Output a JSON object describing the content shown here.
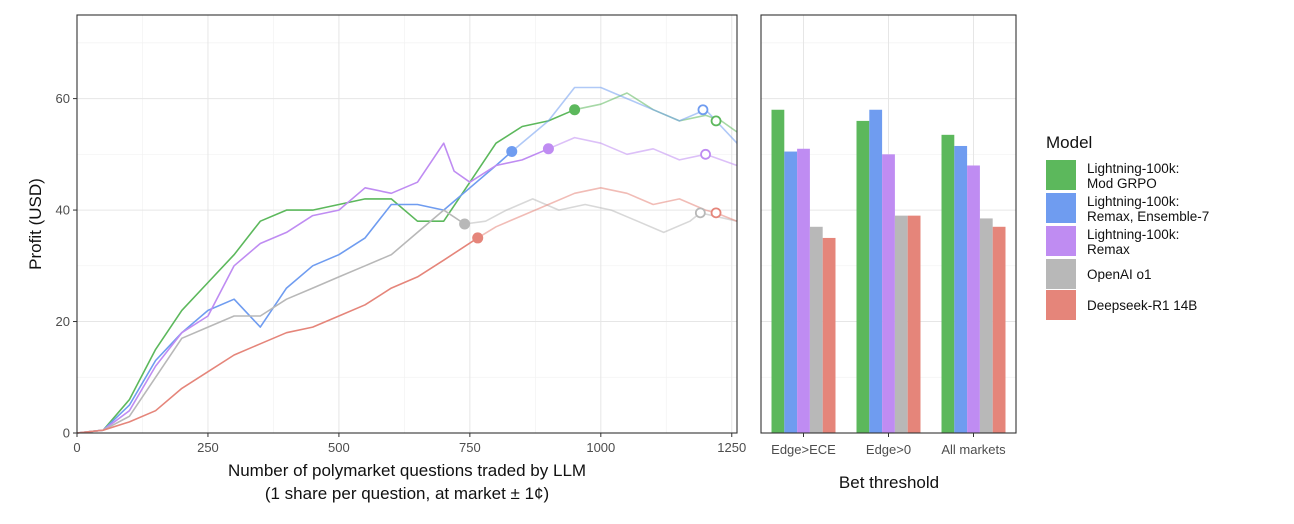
{
  "chart_data": [
    {
      "type": "line",
      "xlabel": "Number of polymarket questions traded by LLM",
      "xlabel2": "(1 share per question, at market ± 1¢)",
      "ylabel": "Profit (USD)",
      "xlim": [
        0,
        1260
      ],
      "ylim": [
        0,
        75
      ],
      "x_ticks": [
        0,
        250,
        500,
        750,
        1000,
        1250
      ],
      "y_ticks": [
        0,
        20,
        40,
        60
      ],
      "grid": true,
      "series": [
        {
          "name": "Lightning-100k:\nMod GRPO",
          "color": "#5cb85c",
          "x": [
            0,
            50,
            100,
            150,
            200,
            250,
            300,
            350,
            400,
            450,
            500,
            550,
            600,
            650,
            700,
            750,
            800,
            850,
            900,
            950,
            1000,
            1050,
            1100,
            1150,
            1200,
            1230,
            1260
          ],
          "y": [
            0,
            0.5,
            6,
            15,
            22,
            27,
            32,
            38,
            40,
            40,
            41,
            42,
            42,
            38,
            38,
            45,
            52,
            55,
            56,
            58,
            59,
            61,
            58,
            56,
            57,
            56,
            54
          ],
          "held_out_from_x": 950,
          "marker": [
            950,
            58
          ],
          "open_marker": [
            1220,
            56
          ]
        },
        {
          "name": "Lightning-100k:\nRemax, Ensemble-7",
          "color": "#6f9cf0",
          "x": [
            0,
            50,
            100,
            150,
            200,
            250,
            300,
            350,
            400,
            450,
            500,
            550,
            600,
            650,
            700,
            750,
            800,
            830,
            900,
            950,
            1000,
            1050,
            1100,
            1150,
            1200,
            1260
          ],
          "y": [
            0,
            0.5,
            5,
            13,
            18,
            22,
            24,
            19,
            26,
            30,
            32,
            35,
            41,
            41,
            40,
            44,
            48,
            50.5,
            56,
            62,
            62,
            60,
            58,
            56,
            58,
            52
          ],
          "held_out_from_x": 830,
          "marker": [
            830,
            50.5
          ],
          "open_marker": [
            1195,
            58
          ]
        },
        {
          "name": "Lightning-100k:\nRemax",
          "color": "#bf8cf2",
          "x": [
            0,
            50,
            100,
            150,
            200,
            250,
            300,
            350,
            400,
            450,
            500,
            550,
            600,
            650,
            700,
            720,
            750,
            800,
            850,
            900,
            950,
            1000,
            1050,
            1100,
            1150,
            1200,
            1260
          ],
          "y": [
            0,
            0.5,
            4,
            12,
            18,
            21,
            30,
            34,
            36,
            39,
            40,
            44,
            43,
            45,
            52,
            47,
            45,
            48,
            49,
            51,
            53,
            52,
            50,
            51,
            49,
            50,
            48
          ],
          "held_out_from_x": 900,
          "marker": [
            900,
            51
          ],
          "open_marker": [
            1200,
            50
          ]
        },
        {
          "name": "OpenAI o1",
          "color": "#b8b8b8",
          "x": [
            0,
            50,
            100,
            150,
            200,
            250,
            300,
            350,
            400,
            450,
            500,
            550,
            600,
            650,
            700,
            740,
            780,
            820,
            870,
            920,
            970,
            1020,
            1070,
            1120,
            1170,
            1190,
            1260
          ],
          "y": [
            0,
            0.5,
            3,
            10,
            17,
            19,
            21,
            21,
            24,
            26,
            28,
            30,
            32,
            36,
            40,
            37.5,
            38,
            40,
            42,
            40,
            41,
            40,
            38,
            36,
            38,
            39.5,
            38
          ],
          "held_out_from_x": 740,
          "marker": [
            740,
            37.5
          ],
          "open_marker": [
            1190,
            39.5
          ]
        },
        {
          "name": "Deepseek-R1 14B",
          "color": "#e5857a",
          "x": [
            0,
            50,
            100,
            150,
            200,
            250,
            300,
            350,
            400,
            450,
            500,
            550,
            600,
            650,
            700,
            765,
            800,
            850,
            900,
            950,
            1000,
            1050,
            1100,
            1150,
            1200,
            1220,
            1260
          ],
          "y": [
            0,
            0.5,
            2,
            4,
            8,
            11,
            14,
            16,
            18,
            19,
            21,
            23,
            26,
            28,
            31,
            35,
            37,
            39,
            41,
            43,
            44,
            43,
            41,
            42,
            40,
            39.5,
            38
          ],
          "held_out_from_x": 765,
          "marker": [
            765,
            35
          ],
          "open_marker": [
            1220,
            39.5
          ]
        }
      ]
    },
    {
      "type": "bar",
      "xlabel": "Bet threshold",
      "categories": [
        "Edge>ECE",
        "Edge>0",
        "All markets"
      ],
      "ylim": [
        0,
        75
      ],
      "grid": true,
      "series": [
        {
          "name": "Lightning-100k:\nMod GRPO",
          "color": "#5cb85c",
          "values": [
            58,
            56,
            53.5
          ]
        },
        {
          "name": "Lightning-100k:\nRemax, Ensemble-7",
          "color": "#6f9cf0",
          "values": [
            50.5,
            58,
            51.5
          ]
        },
        {
          "name": "Lightning-100k:\nRemax",
          "color": "#bf8cf2",
          "values": [
            51,
            50,
            48
          ]
        },
        {
          "name": "OpenAI o1",
          "color": "#b8b8b8",
          "values": [
            37,
            39,
            38.5
          ]
        },
        {
          "name": "Deepseek-R1 14B",
          "color": "#e5857a",
          "values": [
            35,
            39,
            37
          ]
        }
      ]
    }
  ],
  "legend": {
    "title": "Model",
    "placement": "right",
    "items": [
      {
        "label": "Lightning-100k:\nMod GRPO",
        "color": "#5cb85c"
      },
      {
        "label": "Lightning-100k:\nRemax, Ensemble-7",
        "color": "#6f9cf0"
      },
      {
        "label": "Lightning-100k:\nRemax",
        "color": "#bf8cf2"
      },
      {
        "label": "OpenAI o1",
        "color": "#b8b8b8"
      },
      {
        "label": "Deepseek-R1 14B",
        "color": "#e5857a"
      }
    ]
  }
}
